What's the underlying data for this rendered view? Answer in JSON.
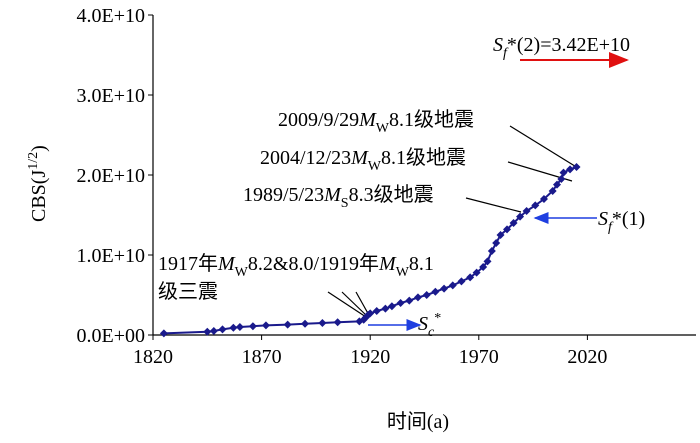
{
  "chart_data": {
    "type": "line",
    "color": "#1a1a8c",
    "x_label": "时间(a)",
    "y_label_parts": [
      "CBS(J",
      "1/2",
      ")"
    ],
    "x": [
      1825,
      1845,
      1848,
      1852,
      1857,
      1860,
      1866,
      1872,
      1882,
      1890,
      1898,
      1905,
      1915,
      1917,
      1918,
      1919,
      1920,
      1923,
      1927,
      1930,
      1934,
      1938,
      1942,
      1946,
      1950,
      1954,
      1958,
      1962,
      1966,
      1969,
      1972,
      1974,
      1976,
      1978,
      1980,
      1983,
      1986,
      1989,
      1992,
      1996,
      2000,
      2004,
      2006,
      2008,
      2009,
      2012,
      2015
    ],
    "values": [
      200000000,
      400000000,
      500000000,
      700000000,
      900000000,
      1000000000,
      1100000000,
      1200000000,
      1300000000,
      1400000000,
      1500000000,
      1600000000,
      1700000000,
      1900000000,
      2200000000,
      2500000000,
      2700000000,
      3000000000,
      3300000000,
      3600000000,
      4000000000,
      4300000000,
      4700000000,
      5000000000,
      5400000000,
      5800000000,
      6200000000,
      6700000000,
      7200000000,
      7800000000,
      8500000000,
      9200000000,
      10500000000,
      11500000000,
      12500000000,
      13200000000,
      14000000000,
      14800000000,
      15500000000,
      16200000000,
      17000000000,
      18000000000,
      18800000000,
      19500000000,
      20300000000,
      20700000000,
      21000000000
    ],
    "xlim": [
      1820,
      2070
    ],
    "xticks": [
      1820,
      1870,
      1920,
      1970,
      2020
    ],
    "ylim": [
      0,
      40000000000
    ],
    "yticks": [
      {
        "value": 0,
        "label": "0.0E+00"
      },
      {
        "value": 10000000000,
        "label": "1.0E+10"
      },
      {
        "value": 20000000000,
        "label": "2.0E+10"
      },
      {
        "value": 30000000000,
        "label": "3.0E+10"
      },
      {
        "value": 40000000000,
        "label": "4.0E+10"
      }
    ],
    "annotations": [
      [
        "2009/9/29",
        "M",
        "W",
        "8.1级地震"
      ],
      [
        "2004/12/23",
        "M",
        "W",
        "8.1级地震"
      ],
      [
        "1989/5/23",
        "M",
        "S",
        "8.3级地震"
      ],
      [
        "1917年",
        "M",
        "W",
        "8.2&8.0/1919年",
        "M",
        "W",
        "8.1"
      ],
      [
        "级三震"
      ],
      [
        "S",
        "c",
        "*"
      ],
      [
        "S",
        "f",
        "*(1)"
      ],
      [
        "S",
        "f",
        "*(2)=3.42E+10"
      ]
    ]
  }
}
